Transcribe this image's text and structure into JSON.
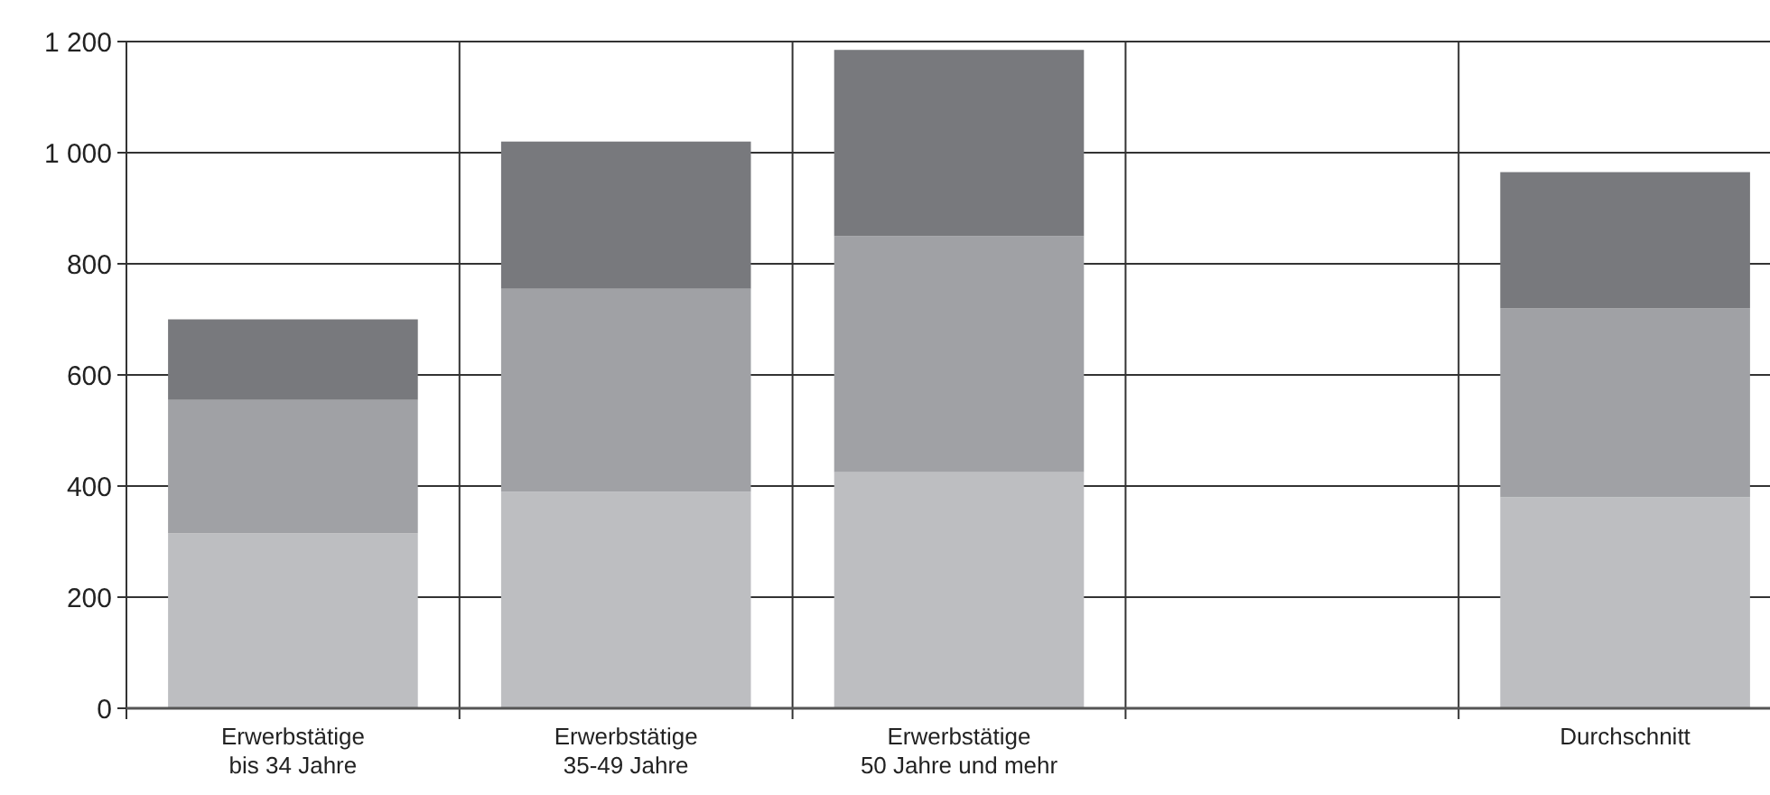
{
  "chart_data": {
    "type": "bar",
    "stacked": true,
    "categories": [
      "Erwerbstätige\nbis 34 Jahre",
      "Erwerbstätige\n35-49 Jahre",
      "Erwerbstätige\n50 Jahre und mehr",
      null,
      "Durchschnitt"
    ],
    "series": [
      {
        "color": "#bdbec1",
        "values": [
          315,
          390,
          425,
          null,
          380
        ]
      },
      {
        "color": "#a0a1a5",
        "values": [
          240,
          365,
          425,
          null,
          340
        ]
      },
      {
        "color": "#78797d",
        "values": [
          145,
          265,
          335,
          null,
          245
        ]
      }
    ],
    "ylim": [
      0,
      1200
    ],
    "yticks": [
      0,
      200,
      400,
      600,
      800,
      {
        "value": 1000,
        "label": "1 000"
      },
      {
        "value": 1200,
        "label": "1 200"
      }
    ],
    "grid": true
  }
}
